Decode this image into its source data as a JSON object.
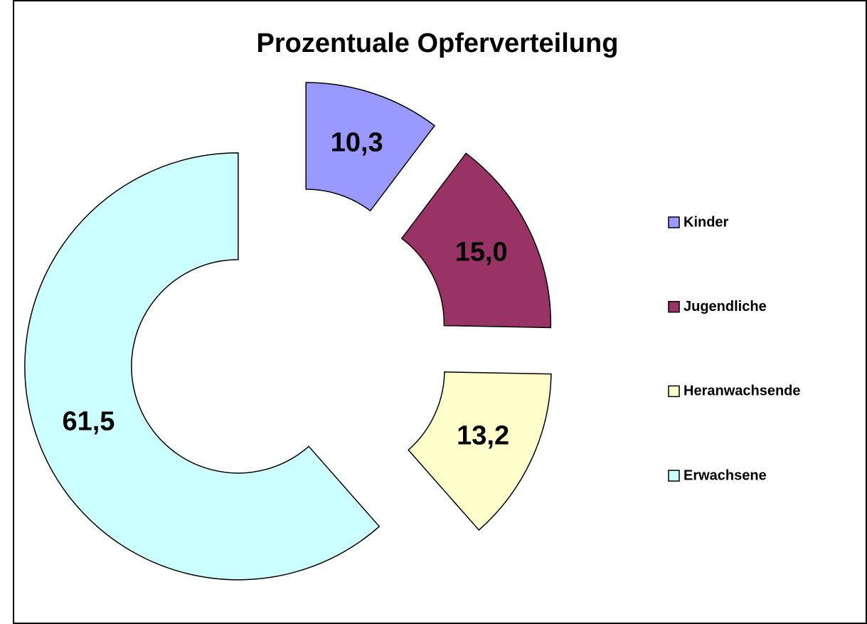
{
  "chart_data": {
    "type": "donut",
    "title": "Prozentuale Opferverteilung",
    "categories": [
      "Kinder",
      "Jugendliche",
      "Heranwachsende",
      "Erwachsene"
    ],
    "values": [
      10.3,
      15.0,
      13.2,
      61.5
    ],
    "value_labels": [
      "10,3",
      "15,0",
      "13,2",
      "61,5"
    ],
    "colors": [
      "#9999ff",
      "#993366",
      "#ffffcc",
      "#ccffff"
    ],
    "legend": "right"
  }
}
